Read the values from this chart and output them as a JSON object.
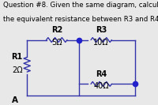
{
  "title_line1": "Question #8. Given the same diagram, calculate",
  "title_line2": "the equivalent resistance between R3 and R4",
  "bg_color": "#c0bfbf",
  "outer_bg": "#e8e8e8",
  "text_color": "#000000",
  "r1_label": "R1",
  "r1_val": "2Ω",
  "r2_label": "R2",
  "r2_val": "5Ω",
  "r3_label": "R3",
  "r3_val": "10Ω",
  "r4_label": "R4",
  "r4_val": "40Ω",
  "dot_color": "#2222cc",
  "wire_color": "#3333aa",
  "lw": 1.0,
  "font_size_title": 6.2,
  "font_size_labels": 7.0,
  "font_size_A": 7.5
}
